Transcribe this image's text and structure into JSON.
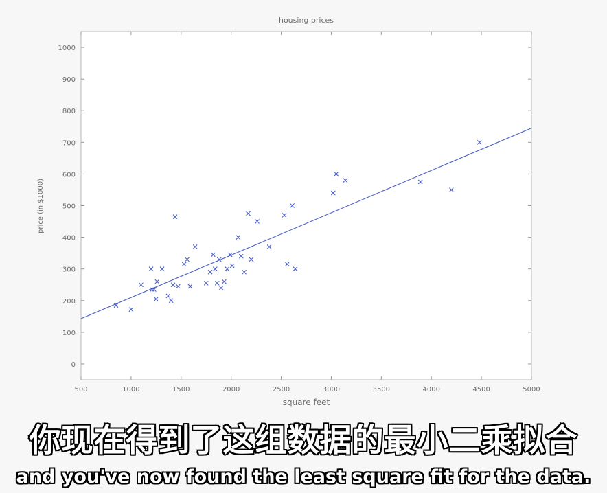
{
  "chart_data": {
    "type": "scatter",
    "title": "housing prices",
    "xlabel": "square feet",
    "ylabel": "price (in $1000)",
    "xlim": [
      500,
      5000
    ],
    "ylim": [
      -50,
      1050
    ],
    "xticks": [
      500,
      1000,
      1500,
      2000,
      2500,
      3000,
      3500,
      4000,
      4500,
      5000
    ],
    "yticks": [
      0,
      100,
      200,
      300,
      400,
      500,
      600,
      700,
      800,
      900,
      1000
    ],
    "marker": "x",
    "color": "#4a5fc8",
    "grid": false,
    "points": [
      [
        850,
        185
      ],
      [
        1000,
        172
      ],
      [
        1100,
        250
      ],
      [
        1200,
        300
      ],
      [
        1210,
        235
      ],
      [
        1230,
        235
      ],
      [
        1250,
        205
      ],
      [
        1260,
        260
      ],
      [
        1310,
        300
      ],
      [
        1370,
        215
      ],
      [
        1400,
        200
      ],
      [
        1420,
        250
      ],
      [
        1440,
        465
      ],
      [
        1470,
        245
      ],
      [
        1530,
        315
      ],
      [
        1560,
        330
      ],
      [
        1590,
        245
      ],
      [
        1640,
        370
      ],
      [
        1750,
        255
      ],
      [
        1790,
        290
      ],
      [
        1820,
        345
      ],
      [
        1840,
        300
      ],
      [
        1860,
        255
      ],
      [
        1880,
        330
      ],
      [
        1900,
        240
      ],
      [
        1930,
        260
      ],
      [
        1960,
        300
      ],
      [
        1990,
        345
      ],
      [
        2010,
        310
      ],
      [
        2070,
        400
      ],
      [
        2100,
        340
      ],
      [
        2130,
        290
      ],
      [
        2170,
        475
      ],
      [
        2200,
        330
      ],
      [
        2260,
        450
      ],
      [
        2380,
        370
      ],
      [
        2530,
        470
      ],
      [
        2560,
        315
      ],
      [
        2610,
        500
      ],
      [
        2640,
        300
      ],
      [
        3020,
        540
      ],
      [
        3050,
        600
      ],
      [
        3140,
        580
      ],
      [
        3890,
        575
      ],
      [
        4200,
        550
      ],
      [
        4480,
        700
      ]
    ],
    "fit_line": {
      "x": [
        500,
        5000
      ],
      "y": [
        143,
        745
      ]
    }
  },
  "subtitles": {
    "zh": "你现在得到了这组数据的最小二乘拟合",
    "en": "and you've now found the least square fit for the data."
  }
}
